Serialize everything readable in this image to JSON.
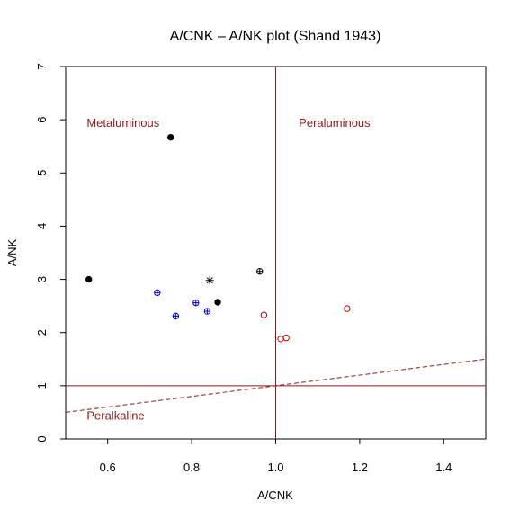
{
  "chart_data": {
    "type": "scatter",
    "title": "A/CNK – A/NK plot (Shand 1943)",
    "xlabel": "A/CNK",
    "ylabel": "A/NK",
    "xlim": [
      0.5,
      1.5
    ],
    "ylim": [
      0,
      7
    ],
    "xticks": [
      0.6,
      0.8,
      1.0,
      1.2,
      1.4
    ],
    "xtick_labels": [
      "0.6",
      "0.8",
      "1.0",
      "1.2",
      "1.4"
    ],
    "yticks": [
      0,
      1,
      2,
      3,
      4,
      5,
      6,
      7
    ],
    "ytick_labels": [
      "0",
      "1",
      "2",
      "3",
      "4",
      "5",
      "6",
      "7"
    ],
    "grid": false,
    "colors": {
      "reference": "#8b1a1a",
      "blue": "#0000cc",
      "red": "#cc0000",
      "black": "#000000"
    },
    "reference_lines": [
      {
        "orientation": "vertical",
        "x": 1.0
      },
      {
        "orientation": "horizontal",
        "y": 1.0
      }
    ],
    "dashed_curve": {
      "x": [
        0.5,
        0.6,
        0.7,
        0.8,
        0.9,
        1.0,
        1.1,
        1.2,
        1.3,
        1.4,
        1.5
      ],
      "y": [
        0.5,
        0.6,
        0.7,
        0.8,
        0.9,
        1.0,
        1.1,
        1.2,
        1.3,
        1.4,
        1.5
      ]
    },
    "region_labels": [
      {
        "text": "Metaluminous",
        "x": 0.55,
        "y": 5.95
      },
      {
        "text": "Peraluminous",
        "x": 1.055,
        "y": 5.95
      },
      {
        "text": "Peralkaline",
        "x": 0.55,
        "y": 0.45
      }
    ],
    "series": [
      {
        "marker": "filled-circle",
        "color": "black",
        "points": [
          [
            0.555,
            3.0
          ],
          [
            0.75,
            5.67
          ],
          [
            0.862,
            2.57
          ]
        ]
      },
      {
        "marker": "asterisk",
        "color": "black",
        "points": [
          [
            0.843,
            2.98
          ]
        ]
      },
      {
        "marker": "circle-plus",
        "color": "black",
        "points": [
          [
            0.962,
            3.15
          ]
        ]
      },
      {
        "marker": "circle-plus",
        "color": "blue",
        "points": [
          [
            0.718,
            2.75
          ],
          [
            0.762,
            2.31
          ],
          [
            0.81,
            2.56
          ],
          [
            0.837,
            2.4
          ]
        ]
      },
      {
        "marker": "open-circle",
        "color": "red",
        "points": [
          [
            0.972,
            2.33
          ],
          [
            1.012,
            1.88
          ],
          [
            1.025,
            1.9
          ],
          [
            1.17,
            2.45
          ]
        ]
      }
    ]
  }
}
